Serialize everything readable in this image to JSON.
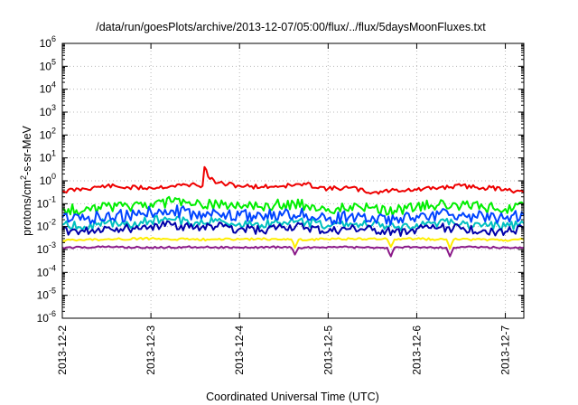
{
  "chart_data": {
    "type": "line",
    "title": "/data/run/goesPlots/archive/2013-12-07/05:00/flux/../flux/5daysMoonFluxes.txt",
    "xlabel": "Coordinated Universal Time (UTC)",
    "ylabel": {
      "prefix": "protons/cm",
      "sup": "2",
      "suffix": "-s-sr-MeV"
    },
    "yscale": "log",
    "ylim": [
      1e-06,
      1000000.0
    ],
    "xlim": [
      "2013-12-02T00:00",
      "2013-12-07T05:00"
    ],
    "grid": true,
    "x_tick_labels": [
      "2013-12-2",
      "2013-12-3",
      "2013-12-4",
      "2013-12-5",
      "2013-12-6",
      "2013-12-7"
    ],
    "y_ticks": [
      {
        "value": 1000000.0,
        "base": "10",
        "exp": "6"
      },
      {
        "value": 100000.0,
        "base": "10",
        "exp": "5"
      },
      {
        "value": 10000.0,
        "base": "10",
        "exp": "4"
      },
      {
        "value": 1000.0,
        "base": "10",
        "exp": "3"
      },
      {
        "value": 100.0,
        "base": "10",
        "exp": "2"
      },
      {
        "value": 10.0,
        "base": "10",
        "exp": "1"
      },
      {
        "value": 1.0,
        "base": "10",
        "exp": "0"
      },
      {
        "value": 0.1,
        "base": "10",
        "exp": "-1"
      },
      {
        "value": 0.01,
        "base": "10",
        "exp": "-2"
      },
      {
        "value": 0.001,
        "base": "10",
        "exp": "-3"
      },
      {
        "value": 0.0001,
        "base": "10",
        "exp": "-4"
      },
      {
        "value": 1e-05,
        "base": "10",
        "exp": "-5"
      },
      {
        "value": 1e-06,
        "base": "10",
        "exp": "-6"
      }
    ],
    "series": [
      {
        "color": "#ee0000",
        "x": [
          "2013-12-02T00:00",
          "2013-12-02T06:00",
          "2013-12-02T12:00",
          "2013-12-02T18:00",
          "2013-12-03T00:00",
          "2013-12-03T06:00",
          "2013-12-03T12:00",
          "2013-12-03T14:00",
          "2013-12-03T14:30",
          "2013-12-03T15:30",
          "2013-12-03T18:00",
          "2013-12-04T00:00",
          "2013-12-04T06:00",
          "2013-12-04T12:00",
          "2013-12-04T18:00",
          "2013-12-05T00:00",
          "2013-12-05T06:00",
          "2013-12-05T12:00",
          "2013-12-05T18:00",
          "2013-12-06T00:00",
          "2013-12-06T06:00",
          "2013-12-06T12:00",
          "2013-12-06T18:00",
          "2013-12-07T00:00",
          "2013-12-07T05:00"
        ],
        "y": [
          0.35,
          0.45,
          0.6,
          0.5,
          0.5,
          0.6,
          0.7,
          0.6,
          4.0,
          1.5,
          0.8,
          0.6,
          0.55,
          0.6,
          0.7,
          0.45,
          0.5,
          0.3,
          0.4,
          0.4,
          0.5,
          0.6,
          0.5,
          0.45,
          0.3
        ]
      },
      {
        "color": "#00ee00",
        "x": [
          "2013-12-02T00:00",
          "2013-12-02T06:00",
          "2013-12-02T12:00",
          "2013-12-02T18:00",
          "2013-12-03T00:00",
          "2013-12-03T06:00",
          "2013-12-03T12:00",
          "2013-12-03T18:00",
          "2013-12-04T00:00",
          "2013-12-04T06:00",
          "2013-12-04T12:00",
          "2013-12-04T18:00",
          "2013-12-05T00:00",
          "2013-12-05T06:00",
          "2013-12-05T12:00",
          "2013-12-05T18:00",
          "2013-12-06T00:00",
          "2013-12-06T06:00",
          "2013-12-06T12:00",
          "2013-12-06T18:00",
          "2013-12-07T00:00",
          "2013-12-07T05:00"
        ],
        "y": [
          0.06,
          0.05,
          0.08,
          0.07,
          0.1,
          0.12,
          0.09,
          0.1,
          0.08,
          0.07,
          0.1,
          0.09,
          0.06,
          0.08,
          0.07,
          0.05,
          0.08,
          0.09,
          0.08,
          0.07,
          0.06,
          0.09
        ]
      },
      {
        "color": "#00c0c0",
        "x": [
          "2013-12-02T00:00",
          "2013-12-02T06:00",
          "2013-12-02T12:00",
          "2013-12-02T18:00",
          "2013-12-03T00:00",
          "2013-12-03T06:00",
          "2013-12-03T12:00",
          "2013-12-03T18:00",
          "2013-12-04T00:00",
          "2013-12-04T06:00",
          "2013-12-04T12:00",
          "2013-12-04T18:00",
          "2013-12-05T00:00",
          "2013-12-05T06:00",
          "2013-12-05T12:00",
          "2013-12-05T18:00",
          "2013-12-06T00:00",
          "2013-12-06T06:00",
          "2013-12-06T12:00",
          "2013-12-06T18:00",
          "2013-12-07T00:00",
          "2013-12-07T05:00"
        ],
        "y": [
          0.012,
          0.01,
          0.015,
          0.012,
          0.018,
          0.02,
          0.015,
          0.018,
          0.014,
          0.012,
          0.016,
          0.015,
          0.011,
          0.014,
          0.012,
          0.009,
          0.013,
          0.015,
          0.013,
          0.012,
          0.01,
          0.014
        ]
      },
      {
        "color": "#0044ff",
        "x": [
          "2013-12-02T00:00",
          "2013-12-02T06:00",
          "2013-12-02T12:00",
          "2013-12-02T18:00",
          "2013-12-03T00:00",
          "2013-12-03T06:00",
          "2013-12-03T12:00",
          "2013-12-03T18:00",
          "2013-12-04T00:00",
          "2013-12-04T06:00",
          "2013-12-04T12:00",
          "2013-12-04T18:00",
          "2013-12-05T00:00",
          "2013-12-05T06:00",
          "2013-12-05T12:00",
          "2013-12-05T18:00",
          "2013-12-06T00:00",
          "2013-12-06T06:00",
          "2013-12-06T12:00",
          "2013-12-06T18:00",
          "2013-12-07T00:00",
          "2013-12-07T05:00"
        ],
        "y": [
          0.025,
          0.02,
          0.035,
          0.03,
          0.045,
          0.05,
          0.035,
          0.04,
          0.03,
          0.028,
          0.04,
          0.035,
          0.022,
          0.03,
          0.028,
          0.02,
          0.03,
          0.035,
          0.03,
          0.028,
          0.022,
          0.032
        ]
      },
      {
        "color": "#0000aa",
        "x": [
          "2013-12-02T00:00",
          "2013-12-02T06:00",
          "2013-12-02T12:00",
          "2013-12-02T18:00",
          "2013-12-03T00:00",
          "2013-12-03T06:00",
          "2013-12-03T12:00",
          "2013-12-03T18:00",
          "2013-12-04T00:00",
          "2013-12-04T06:00",
          "2013-12-04T12:00",
          "2013-12-04T18:00",
          "2013-12-05T00:00",
          "2013-12-05T06:00",
          "2013-12-05T12:00",
          "2013-12-05T18:00",
          "2013-12-06T00:00",
          "2013-12-06T06:00",
          "2013-12-06T12:00",
          "2013-12-06T18:00",
          "2013-12-07T00:00",
          "2013-12-07T05:00"
        ],
        "y": [
          0.007,
          0.006,
          0.009,
          0.008,
          0.011,
          0.012,
          0.009,
          0.01,
          0.008,
          0.007,
          0.01,
          0.009,
          0.006,
          0.008,
          0.007,
          0.0055,
          0.008,
          0.009,
          0.008,
          0.007,
          0.006,
          0.0085
        ]
      },
      {
        "color": "#ffee00",
        "x": [
          "2013-12-02T00:00",
          "2013-12-02T12:00",
          "2013-12-03T00:00",
          "2013-12-03T12:00",
          "2013-12-04T00:00",
          "2013-12-04T12:00",
          "2013-12-04T14:00",
          "2013-12-04T15:00",
          "2013-12-04T16:00",
          "2013-12-05T00:00",
          "2013-12-05T12:00",
          "2013-12-05T16:00",
          "2013-12-05T17:00",
          "2013-12-05T18:00",
          "2013-12-06T00:00",
          "2013-12-06T08:00",
          "2013-12-06T09:00",
          "2013-12-06T10:00",
          "2013-12-06T12:00",
          "2013-12-07T00:00",
          "2013-12-07T05:00"
        ],
        "y": [
          0.0025,
          0.0028,
          0.003,
          0.0027,
          0.0028,
          0.0029,
          0.0028,
          0.0012,
          0.0027,
          0.0028,
          0.003,
          0.0028,
          0.0013,
          0.0028,
          0.0029,
          0.0028,
          0.0011,
          0.0027,
          0.0028,
          0.0026,
          0.0027
        ]
      },
      {
        "color": "#8b1a89",
        "x": [
          "2013-12-02T00:00",
          "2013-12-02T12:00",
          "2013-12-03T00:00",
          "2013-12-03T12:00",
          "2013-12-04T00:00",
          "2013-12-04T12:00",
          "2013-12-04T14:00",
          "2013-12-04T15:00",
          "2013-12-04T16:00",
          "2013-12-05T00:00",
          "2013-12-05T12:00",
          "2013-12-05T16:00",
          "2013-12-05T17:00",
          "2013-12-05T18:00",
          "2013-12-06T00:00",
          "2013-12-06T08:00",
          "2013-12-06T09:00",
          "2013-12-06T10:00",
          "2013-12-06T12:00",
          "2013-12-07T00:00",
          "2013-12-07T05:00"
        ],
        "y": [
          0.0012,
          0.0013,
          0.0012,
          0.0013,
          0.0012,
          0.0013,
          0.0012,
          0.0006,
          0.0012,
          0.0013,
          0.0012,
          0.0012,
          0.0005,
          0.0012,
          0.0013,
          0.0012,
          0.0005,
          0.0012,
          0.0013,
          0.0012,
          0.0012
        ]
      }
    ]
  }
}
